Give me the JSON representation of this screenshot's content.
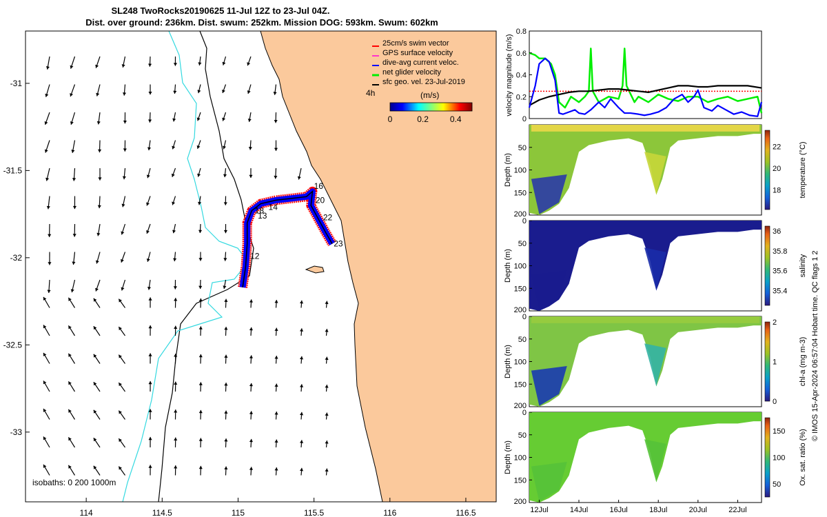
{
  "title": {
    "line1": "SL248 TwoRocks20190625 11-Jul 12Z to 23-Jul 04Z.",
    "line2": "Dist. over ground: 236km. Dist. swum: 252km. Mission DOG: 593km. Swum: 602km"
  },
  "footer_note": "© IMOS 15-Apr-2024 06:57:04 Hobart time. QC flags 1  2",
  "colors": {
    "land": "#fbc99c",
    "sea": "#ffffff",
    "isobath_0": "#000000",
    "isobath_200": "#000000",
    "isobath_1000": "#33d9e0",
    "swim_vector": "#ff0000",
    "gps_velocity": "#ff33cc",
    "dive_avg": "#0000ff",
    "net_glider": "#00ee00",
    "sfc_geo": "#000000"
  },
  "chart_data": [
    {
      "type": "map",
      "name": "track-map",
      "xlim": [
        113.6,
        116.7
      ],
      "ylim": [
        -33.4,
        -30.7
      ],
      "xticks": [
        "114",
        "114.5",
        "115",
        "115.5",
        "116",
        "116.5"
      ],
      "yticks": [
        "-31",
        "-31.5",
        "-32",
        "-32.5",
        "-33"
      ],
      "legend": {
        "placement": "top-right",
        "entries": [
          "25cm/s swim vector",
          "GPS surface velocity",
          "dive-avg current veloc.",
          "net glider velocity",
          "sfc geo. vel. 23-Jul-2019"
        ]
      },
      "colorbar": {
        "label": "(m/s)",
        "corner_label": "4h",
        "ticks": [
          "0",
          "0.2",
          "0.4"
        ],
        "range": [
          0,
          0.5
        ]
      },
      "isobaths_label": "isobaths: 0  200  1000m",
      "day_labels": [
        {
          "text": "12",
          "lon": 115.08,
          "lat": -31.99
        },
        {
          "text": "13",
          "lon": 115.13,
          "lat": -31.76
        },
        {
          "text": "14",
          "lon": 115.2,
          "lat": -31.71
        },
        {
          "text": "18",
          "lon": 115.11,
          "lat": -31.73
        },
        {
          "text": "16",
          "lon": 115.5,
          "lat": -31.59
        },
        {
          "text": "20",
          "lon": 115.51,
          "lat": -31.67
        },
        {
          "text": "22",
          "lon": 115.56,
          "lat": -31.77
        },
        {
          "text": "23",
          "lon": 115.63,
          "lat": -31.92
        }
      ],
      "track_path": [
        [
          115.03,
          -32.17
        ],
        [
          115.05,
          -32.05
        ],
        [
          115.06,
          -31.92
        ],
        [
          115.06,
          -31.8
        ],
        [
          115.09,
          -31.73
        ],
        [
          115.15,
          -31.69
        ],
        [
          115.25,
          -31.67
        ],
        [
          115.35,
          -31.66
        ],
        [
          115.45,
          -31.65
        ],
        [
          115.49,
          -31.62
        ],
        [
          115.48,
          -31.7
        ],
        [
          115.53,
          -31.78
        ],
        [
          115.58,
          -31.86
        ],
        [
          115.62,
          -31.92
        ]
      ]
    },
    {
      "type": "line",
      "name": "velocity-magnitude",
      "ylabel": "velocity magnitude (m/s)",
      "ylim": [
        0,
        0.8
      ],
      "yticks": [
        "0",
        "0.2",
        "0.4",
        "0.6",
        "0.8"
      ],
      "xlim": [
        11.5,
        23.2
      ],
      "series": [
        {
          "color": "#000000",
          "x": [
            11.5,
            12,
            12.5,
            13,
            13.5,
            14,
            14.5,
            15,
            15.5,
            16,
            16.5,
            17,
            17.5,
            18,
            18.5,
            19,
            19.5,
            20,
            20.5,
            21,
            21.5,
            22,
            22.5,
            23.2
          ],
          "values": [
            0.12,
            0.17,
            0.2,
            0.22,
            0.24,
            0.25,
            0.25,
            0.26,
            0.27,
            0.27,
            0.26,
            0.25,
            0.24,
            0.26,
            0.28,
            0.3,
            0.3,
            0.29,
            0.29,
            0.3,
            0.3,
            0.3,
            0.3,
            0.28
          ]
        },
        {
          "color": "#ff0000",
          "x": [
            11.5,
            12,
            12.5,
            13,
            13.5,
            14,
            14.5,
            15,
            15.5,
            16,
            16.5,
            17,
            17.5,
            18,
            18.5,
            19,
            19.5,
            20,
            20.5,
            21,
            21.5,
            22,
            22.5,
            23.2
          ],
          "values": [
            0.25,
            0.25,
            0.25,
            0.25,
            0.25,
            0.25,
            0.25,
            0.25,
            0.25,
            0.25,
            0.25,
            0.25,
            0.25,
            0.25,
            0.25,
            0.25,
            0.25,
            0.25,
            0.25,
            0.25,
            0.25,
            0.25,
            0.25,
            0.25
          ]
        },
        {
          "color": "#00ee00",
          "x": [
            11.5,
            11.8,
            12,
            12.3,
            12.6,
            12.8,
            13,
            13.3,
            13.6,
            14,
            14.3,
            14.5,
            14.6,
            14.7,
            15,
            15.5,
            16,
            16.2,
            16.3,
            16.4,
            16.8,
            17,
            17.5,
            18,
            18.5,
            19,
            19.5,
            20,
            20.5,
            21,
            21.5,
            22,
            22.5,
            23,
            23.2
          ],
          "values": [
            0.6,
            0.58,
            0.55,
            0.55,
            0.5,
            0.4,
            0.15,
            0.1,
            0.2,
            0.15,
            0.2,
            0.25,
            0.64,
            0.25,
            0.15,
            0.2,
            0.18,
            0.3,
            0.64,
            0.3,
            0.15,
            0.2,
            0.15,
            0.22,
            0.18,
            0.16,
            0.2,
            0.2,
            0.15,
            0.18,
            0.2,
            0.16,
            0.18,
            0.2,
            0.05
          ]
        },
        {
          "color": "#0000ff",
          "x": [
            11.5,
            11.8,
            12,
            12.3,
            12.5,
            12.8,
            13,
            13.2,
            13.5,
            13.8,
            14,
            14.3,
            14.6,
            15,
            15.3,
            15.6,
            16,
            16.3,
            16.6,
            17,
            17.3,
            17.6,
            18,
            18.4,
            18.8,
            19.2,
            19.5,
            19.8,
            20,
            20.3,
            20.7,
            21,
            21.4,
            21.8,
            22.2,
            22.6,
            23,
            23.2
          ],
          "values": [
            0.1,
            0.3,
            0.5,
            0.55,
            0.52,
            0.35,
            0.05,
            0.04,
            0.06,
            0.08,
            0.05,
            0.04,
            0.08,
            0.15,
            0.1,
            0.18,
            0.1,
            0.05,
            0.05,
            0.04,
            0.03,
            0.04,
            0.06,
            0.1,
            0.18,
            0.22,
            0.15,
            0.2,
            0.26,
            0.1,
            0.07,
            0.12,
            0.08,
            0.04,
            0.06,
            0.03,
            0.02,
            0.15
          ]
        }
      ]
    },
    {
      "type": "heatmap",
      "name": "temperature-section",
      "ylabel": "Depth (m)",
      "yticks": [
        "50",
        "100",
        "150",
        "200"
      ],
      "ylim": [
        0,
        200
      ],
      "colorbar_label": "temperature (°C)",
      "colorbar_ticks": [
        "18",
        "20",
        "22"
      ],
      "colorbar_range": [
        16.2,
        23.5
      ]
    },
    {
      "type": "heatmap",
      "name": "salinity-section",
      "ylabel": "Depth (m)",
      "yticks": [
        "0",
        "50",
        "100",
        "150",
        "200"
      ],
      "ylim": [
        0,
        200
      ],
      "colorbar_label": "salinity",
      "colorbar_ticks": [
        "35.4",
        "35.6",
        "35.8",
        "36"
      ],
      "colorbar_range": [
        35.25,
        36.05
      ]
    },
    {
      "type": "heatmap",
      "name": "chla-section",
      "ylabel": "Depth (m)",
      "yticks": [
        "0",
        "50",
        "100",
        "150",
        "200"
      ],
      "ylim": [
        0,
        200
      ],
      "colorbar_label": "chl-a (mg m-3)",
      "colorbar_ticks": [
        "0",
        "1",
        "2"
      ],
      "colorbar_range": [
        0,
        2
      ]
    },
    {
      "type": "heatmap",
      "name": "oxygen-section",
      "ylabel": "Depth (m)",
      "yticks": [
        "0",
        "50",
        "100",
        "150",
        "200"
      ],
      "ylim": [
        0,
        200
      ],
      "xticks": [
        "12Jul",
        "14Jul",
        "16Jul",
        "18Jul",
        "20Jul",
        "22Jul"
      ],
      "colorbar_label": "Ox. sat. ratio (%)",
      "colorbar_ticks": [
        "50",
        "100",
        "150"
      ],
      "colorbar_range": [
        25,
        175
      ]
    }
  ]
}
